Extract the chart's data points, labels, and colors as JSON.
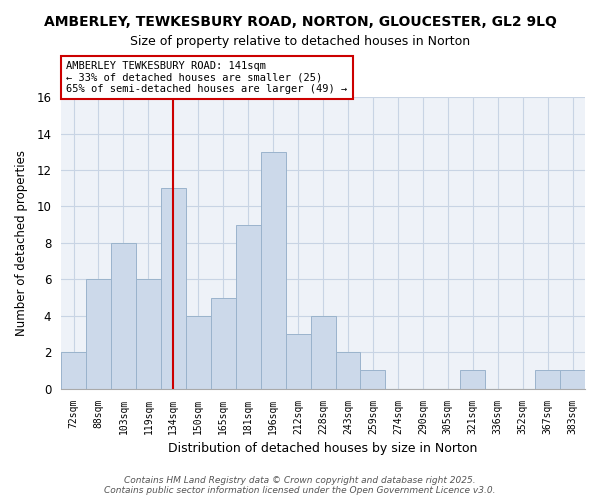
{
  "title": "AMBERLEY, TEWKESBURY ROAD, NORTON, GLOUCESTER, GL2 9LQ",
  "subtitle": "Size of property relative to detached houses in Norton",
  "xlabel": "Distribution of detached houses by size in Norton",
  "ylabel": "Number of detached properties",
  "categories": [
    "72sqm",
    "88sqm",
    "103sqm",
    "119sqm",
    "134sqm",
    "150sqm",
    "165sqm",
    "181sqm",
    "196sqm",
    "212sqm",
    "228sqm",
    "243sqm",
    "259sqm",
    "274sqm",
    "290sqm",
    "305sqm",
    "321sqm",
    "336sqm",
    "352sqm",
    "367sqm",
    "383sqm"
  ],
  "values": [
    2,
    6,
    8,
    6,
    11,
    4,
    5,
    9,
    13,
    3,
    4,
    2,
    1,
    0,
    0,
    0,
    1,
    0,
    0,
    1,
    1
  ],
  "bar_color": "#ccd9ea",
  "bar_edge_color": "#9ab3cc",
  "ylim": [
    0,
    16
  ],
  "yticks": [
    0,
    2,
    4,
    6,
    8,
    10,
    12,
    14,
    16
  ],
  "vline_x_index": 4,
  "vline_color": "#cc0000",
  "annotation_text": "AMBERLEY TEWKESBURY ROAD: 141sqm\n← 33% of detached houses are smaller (25)\n65% of semi-detached houses are larger (49) →",
  "annotation_box_edgecolor": "#cc0000",
  "background_color": "#ffffff",
  "plot_bg_color": "#eef2f8",
  "grid_color": "#c8d4e4",
  "footer_line1": "Contains HM Land Registry data © Crown copyright and database right 2025.",
  "footer_line2": "Contains public sector information licensed under the Open Government Licence v3.0."
}
